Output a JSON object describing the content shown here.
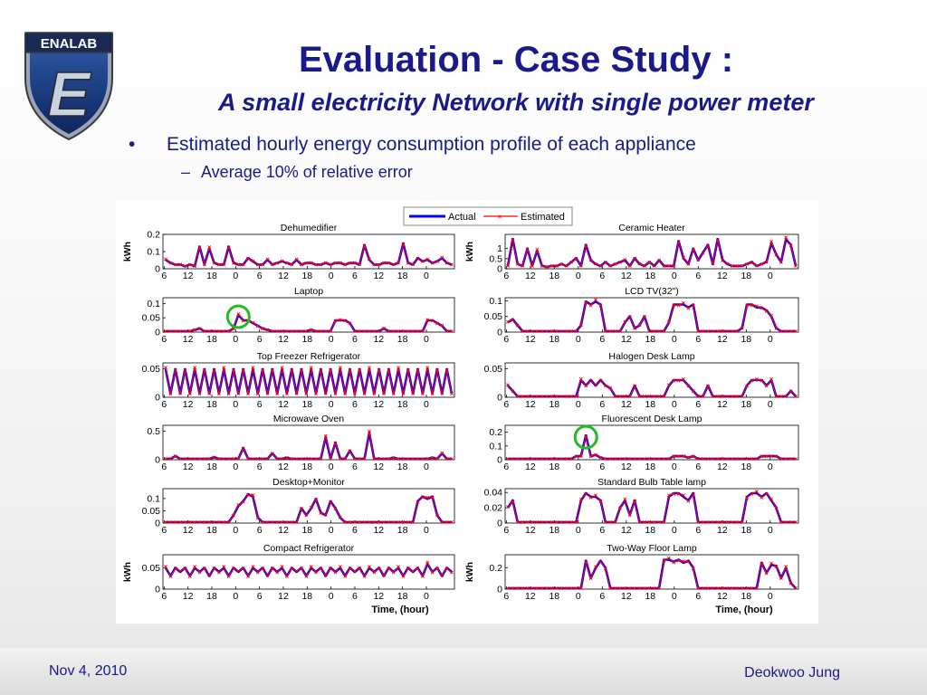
{
  "logo": {
    "text": "ENALAB",
    "letter": "E"
  },
  "title": "Evaluation - Case Study :",
  "subtitle": "A small electricity Network with single power meter",
  "bullets": [
    "Estimated hourly energy consumption profile of each appliance",
    "Average 10% of relative error"
  ],
  "footer": {
    "date": "Nov 4, 2010",
    "author": "Deokwoo Jung"
  },
  "colors": {
    "actual": "#0000ff",
    "estimated": "#ff0000",
    "title": "#1a1a88",
    "highlight": "#22bb22"
  },
  "chart_data": {
    "type": "line",
    "legend": {
      "actual": "Actual",
      "estimated": "Estimated",
      "placement": "top-center"
    },
    "xlabel": "Time, (hour)",
    "ylabel": "kWh",
    "x_tick_labels": [
      "6",
      "12",
      "18",
      "0",
      "6",
      "12",
      "18",
      "0",
      "6",
      "12",
      "18",
      "0"
    ],
    "left_column": [
      {
        "title": "Dehumedifier",
        "ylim": [
          0,
          0.2
        ],
        "yticks": [
          "0.2",
          "0.1",
          "0"
        ],
        "show_ylabel": true,
        "values": [
          0.05,
          0.03,
          0.02,
          0.02,
          0.01,
          0.02,
          0.01,
          0.13,
          0.02,
          0.12,
          0.03,
          0.02,
          0.02,
          0.13,
          0.03,
          0.02,
          0.02,
          0.06,
          0.04,
          0.02,
          0.02,
          0.05,
          0.02,
          0.03,
          0.04,
          0.03,
          0.02,
          0.05,
          0.02,
          0.03,
          0.03,
          0.02,
          0.02,
          0.03,
          0.02,
          0.03,
          0.03,
          0.02,
          0.03,
          0.03,
          0.02,
          0.14,
          0.05,
          0.02,
          0.02,
          0.03,
          0.03,
          0.02,
          0.03,
          0.15,
          0.03,
          0.02,
          0.06,
          0.04,
          0.05,
          0.03,
          0.04,
          0.06,
          0.03,
          0.02
        ]
      },
      {
        "title": "Laptop",
        "ylim": [
          0,
          0.12
        ],
        "yticks": [
          "0.1",
          "0.05",
          "0"
        ],
        "show_ylabel": false,
        "highlight_index": 15,
        "values": [
          0,
          0,
          0,
          0,
          0,
          0,
          0.005,
          0.01,
          0,
          0,
          0,
          0,
          0,
          0,
          0.01,
          0.06,
          0.04,
          0.04,
          0.03,
          0.02,
          0.01,
          0.005,
          0,
          0,
          0,
          0,
          0,
          0,
          0,
          0,
          0.005,
          0,
          0,
          0,
          0,
          0.04,
          0.04,
          0.04,
          0.03,
          0,
          0,
          0,
          0,
          0,
          0,
          0.01,
          0,
          0,
          0,
          0,
          0,
          0,
          0,
          0,
          0.04,
          0.04,
          0.03,
          0.02,
          0,
          0
        ]
      },
      {
        "title": "Top Freezer Refrigerator",
        "ylim": [
          0,
          0.06
        ],
        "yticks": [
          "0.05",
          "0"
        ],
        "show_ylabel": false,
        "values": [
          0.05,
          0.005,
          0.05,
          0.005,
          0.05,
          0.005,
          0.05,
          0.005,
          0.05,
          0.005,
          0.05,
          0.005,
          0.05,
          0.005,
          0.05,
          0.005,
          0.05,
          0.005,
          0.05,
          0.005,
          0.05,
          0.005,
          0.05,
          0.005,
          0.05,
          0.005,
          0.05,
          0.005,
          0.05,
          0.005,
          0.05,
          0.005,
          0.05,
          0.005,
          0.05,
          0.005,
          0.05,
          0.005,
          0.05,
          0.005,
          0.05,
          0.005,
          0.05,
          0.005,
          0.05,
          0.005,
          0.05,
          0.005,
          0.05,
          0.005,
          0.05,
          0.005,
          0.05,
          0.005,
          0.05,
          0.005,
          0.05,
          0.005,
          0.05,
          0.005
        ]
      },
      {
        "title": "Microwave  Oven",
        "ylim": [
          0,
          0.6
        ],
        "yticks": [
          "0.5",
          "0"
        ],
        "show_ylabel": false,
        "values": [
          0,
          0,
          0.05,
          0,
          0,
          0,
          0,
          0,
          0,
          0,
          0.03,
          0,
          0,
          0,
          0,
          0,
          0.2,
          0,
          0,
          0,
          0,
          0,
          0.1,
          0,
          0,
          0.02,
          0,
          0,
          0,
          0,
          0,
          0,
          0,
          0.4,
          0,
          0.3,
          0,
          0,
          0.15,
          0,
          0,
          0,
          0.48,
          0,
          0,
          0,
          0,
          0.02,
          0,
          0,
          0,
          0,
          0,
          0,
          0,
          0.02,
          0,
          0.1,
          0,
          0
        ]
      },
      {
        "title": "Desktop+Monitor",
        "ylim": [
          0,
          0.14
        ],
        "yticks": [
          "0.1",
          "0.05",
          "0"
        ],
        "show_ylabel": false,
        "values": [
          0,
          0,
          0,
          0,
          0,
          0,
          0,
          0,
          0,
          0,
          0,
          0,
          0,
          0,
          0.03,
          0.07,
          0.09,
          0.12,
          0.11,
          0.02,
          0,
          0,
          0,
          0,
          0,
          0,
          0,
          0,
          0.06,
          0.03,
          0.06,
          0.1,
          0.04,
          0.03,
          0.09,
          0.06,
          0.02,
          0,
          0,
          0,
          0,
          0,
          0,
          0,
          0,
          0,
          0,
          0,
          0,
          0,
          0,
          0,
          0.09,
          0.11,
          0.1,
          0.11,
          0.03,
          0,
          0,
          0
        ]
      },
      {
        "title": "Compact Refrigerator",
        "ylim": [
          0,
          0.08
        ],
        "yticks": [
          "0.05",
          "0"
        ],
        "show_ylabel": true,
        "xlabel_here": true,
        "values": [
          0.05,
          0.03,
          0.05,
          0.04,
          0.05,
          0.03,
          0.05,
          0.04,
          0.05,
          0.03,
          0.05,
          0.04,
          0.05,
          0.03,
          0.05,
          0.04,
          0.05,
          0.03,
          0.05,
          0.04,
          0.05,
          0.03,
          0.05,
          0.04,
          0.05,
          0.03,
          0.05,
          0.04,
          0.05,
          0.03,
          0.05,
          0.04,
          0.05,
          0.03,
          0.05,
          0.04,
          0.05,
          0.03,
          0.05,
          0.04,
          0.05,
          0.03,
          0.05,
          0.04,
          0.05,
          0.03,
          0.05,
          0.04,
          0.05,
          0.03,
          0.05,
          0.04,
          0.05,
          0.03,
          0.06,
          0.04,
          0.05,
          0.03,
          0.05,
          0.04
        ]
      }
    ],
    "right_column": [
      {
        "title": "Ceramic Heater",
        "ylim": [
          0,
          1.7
        ],
        "yticks": [
          "1",
          "0.5",
          "0"
        ],
        "show_ylabel": true,
        "values": [
          0.1,
          1.5,
          0.2,
          0.1,
          1.0,
          0.1,
          0.9,
          0.1,
          0.05,
          0.1,
          0.1,
          0.2,
          0.1,
          0.3,
          0.5,
          0.1,
          1.2,
          0.4,
          0.2,
          0.1,
          0.3,
          0.1,
          0.2,
          0.3,
          0.4,
          0.1,
          0.5,
          0.2,
          0.1,
          0.3,
          0.1,
          0.4,
          0.1,
          0.1,
          0.1,
          1.4,
          0.5,
          0.2,
          1.0,
          0.4,
          0.8,
          1.2,
          0.2,
          1.5,
          0.4,
          0.2,
          0.1,
          0.1,
          0.1,
          0.2,
          0.3,
          0.1,
          0.2,
          0.3,
          1.3,
          0.7,
          0.3,
          1.5,
          1.2,
          0.1
        ]
      },
      {
        "title": "LCD TV(32\")",
        "ylim": [
          0,
          0.11
        ],
        "yticks": [
          "0.1",
          "0.05",
          "0"
        ],
        "show_ylabel": false,
        "values": [
          0.03,
          0.04,
          0.02,
          0,
          0,
          0,
          0,
          0,
          0,
          0,
          0,
          0,
          0,
          0,
          0,
          0.02,
          0.1,
          0.09,
          0.1,
          0.09,
          0,
          0,
          0,
          0,
          0.03,
          0.05,
          0.01,
          0.02,
          0.05,
          0,
          0,
          0,
          0,
          0.03,
          0.09,
          0.09,
          0.09,
          0.08,
          0.09,
          0,
          0,
          0,
          0,
          0,
          0,
          0,
          0,
          0,
          0.01,
          0.09,
          0.09,
          0.08,
          0.08,
          0.07,
          0.05,
          0.01,
          0,
          0,
          0,
          0
        ]
      },
      {
        "title": "Halogen Desk Lamp",
        "ylim": [
          0,
          0.06
        ],
        "yticks": [
          "0.05",
          "0"
        ],
        "show_ylabel": false,
        "values": [
          0.02,
          0.01,
          0,
          0,
          0,
          0,
          0,
          0,
          0,
          0,
          0,
          0,
          0,
          0,
          0,
          0.03,
          0.02,
          0.03,
          0.02,
          0.03,
          0.02,
          0.015,
          0,
          0,
          0,
          0,
          0.02,
          0,
          0,
          0,
          0,
          0,
          0,
          0.02,
          0.03,
          0.03,
          0.03,
          0.02,
          0.01,
          0,
          0,
          0.02,
          0,
          0,
          0,
          0,
          0,
          0,
          0,
          0.02,
          0.03,
          0.03,
          0.03,
          0.02,
          0.03,
          0,
          0,
          0,
          0.01,
          0
        ]
      },
      {
        "title": "Fluorescent Desk Lamp",
        "ylim": [
          0,
          0.25
        ],
        "yticks": [
          "0.2",
          "0.1",
          "0"
        ],
        "show_ylabel": false,
        "highlight_index": 16,
        "values": [
          0,
          0,
          0,
          0,
          0,
          0,
          0,
          0,
          0,
          0,
          0,
          0,
          0,
          0,
          0.02,
          0.02,
          0.18,
          0.02,
          0.03,
          0.01,
          0,
          0,
          0,
          0,
          0,
          0,
          0,
          0,
          0,
          0,
          0,
          0,
          0,
          0,
          0.02,
          0.02,
          0.02,
          0.01,
          0.02,
          0,
          0,
          0,
          0,
          0,
          0,
          0,
          0,
          0,
          0,
          0,
          0,
          0,
          0.02,
          0.02,
          0.02,
          0.02,
          0,
          0,
          0,
          0
        ]
      },
      {
        "title": "Standard Bulb Table lamp",
        "ylim": [
          0,
          0.045
        ],
        "yticks": [
          "0.04",
          "0.02",
          "0"
        ],
        "show_ylabel": false,
        "values": [
          0.02,
          0.03,
          0,
          0,
          0,
          0,
          0,
          0,
          0,
          0,
          0,
          0,
          0,
          0,
          0,
          0.03,
          0.04,
          0.035,
          0.035,
          0.03,
          0,
          0,
          0,
          0.02,
          0.03,
          0.01,
          0.03,
          0,
          0,
          0,
          0,
          0,
          0,
          0.035,
          0.04,
          0.04,
          0.035,
          0.03,
          0.04,
          0,
          0,
          0,
          0,
          0,
          0,
          0,
          0,
          0,
          0,
          0.035,
          0.04,
          0.04,
          0.035,
          0.04,
          0.03,
          0.02,
          0,
          0,
          0,
          0
        ]
      },
      {
        "title": "Two-Way Floor Lamp",
        "ylim": [
          0,
          0.32
        ],
        "yticks": [
          "0.2",
          "0"
        ],
        "show_ylabel": true,
        "xlabel_here": true,
        "values": [
          0,
          0,
          0,
          0,
          0,
          0,
          0,
          0,
          0,
          0,
          0,
          0,
          0,
          0,
          0,
          0,
          0.27,
          0.1,
          0.2,
          0.27,
          0.2,
          0,
          0,
          0,
          0,
          0,
          0,
          0,
          0,
          0,
          0,
          0,
          0.28,
          0.28,
          0.26,
          0.28,
          0.25,
          0.27,
          0.2,
          0,
          0,
          0,
          0,
          0,
          0,
          0,
          0,
          0,
          0,
          0,
          0,
          0,
          0.25,
          0.15,
          0.23,
          0.22,
          0.1,
          0.2,
          0.05,
          0
        ]
      }
    ]
  }
}
